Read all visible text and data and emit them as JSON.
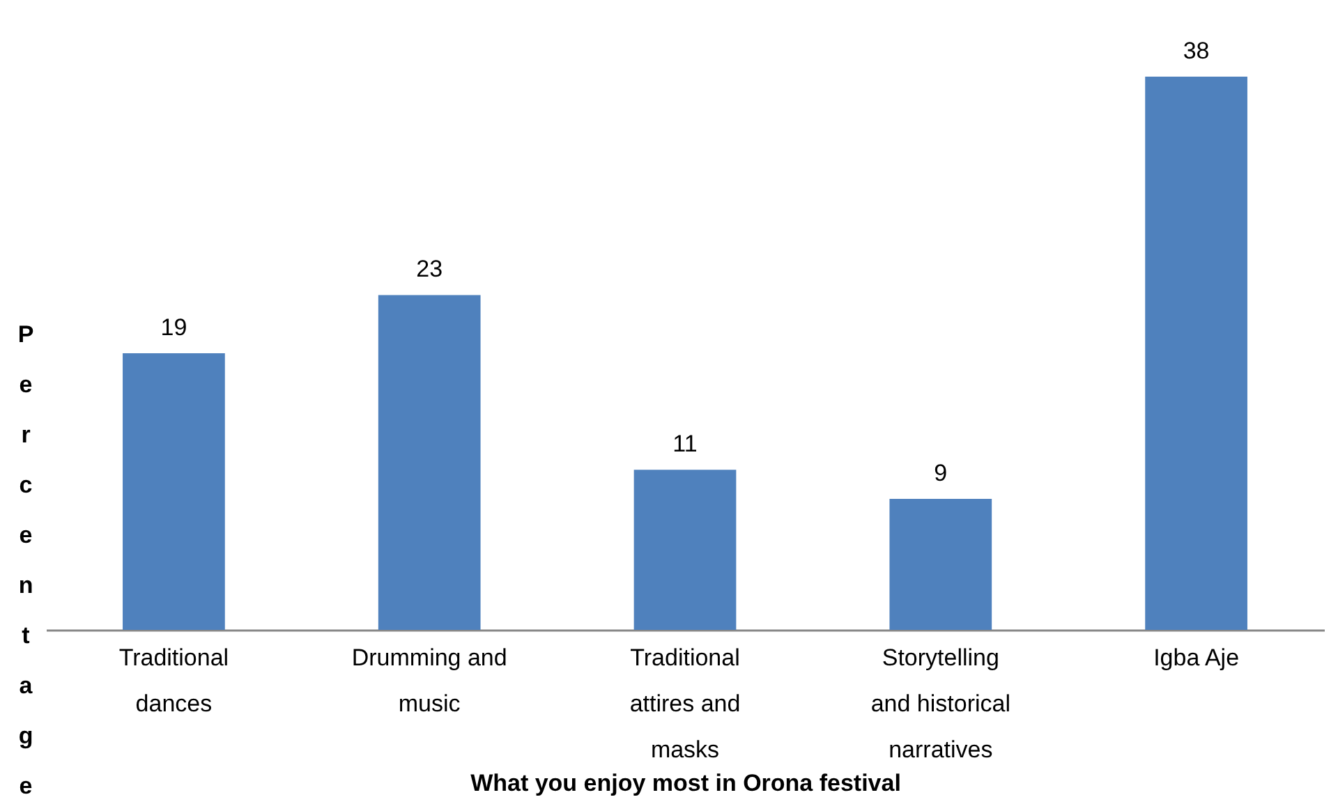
{
  "chart_data": {
    "type": "bar",
    "xlabel": "What you enjoy most in Orona festival",
    "ylabel": "Percentage",
    "categories": [
      "Traditional dances",
      "Drumming and music",
      "Traditional attires and masks",
      "Storytelling and historical narratives",
      "Igba Aje"
    ],
    "values": [
      19,
      23,
      11,
      9,
      38
    ],
    "color": "#4f81bd",
    "data_labels": true
  }
}
